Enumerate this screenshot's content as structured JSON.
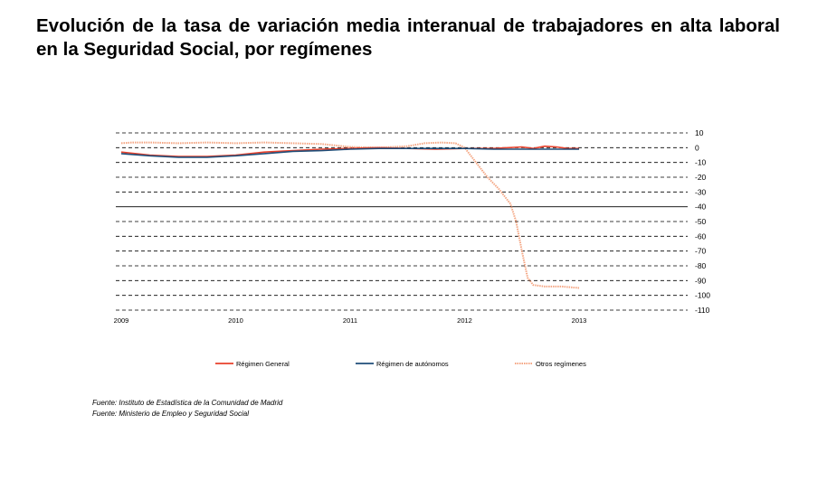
{
  "page": {
    "title": "Evolución de la tasa de variación media interanual de trabajadores en alta laboral en la Seguridad Social, por  regímenes",
    "sources": [
      "Fuente: Instituto de Estadística de la Comunidad de Madrid",
      "Fuente: Ministerio de Empleo y Seguridad Social"
    ]
  },
  "chart_data": {
    "type": "line",
    "title": "",
    "xlabel": "",
    "ylabel": "",
    "x_ticks": [
      "2009",
      "2010",
      "2011",
      "2012",
      "2013"
    ],
    "xlim": [
      2009,
      2014
    ],
    "y_ticks": [
      10,
      0,
      -10,
      -20,
      -30,
      -40,
      -50,
      -60,
      -70,
      -80,
      -90,
      -100,
      -110
    ],
    "ylim": [
      -110,
      10
    ],
    "y_axis_side": "right",
    "grid": "horizontal dashed",
    "legend_position": "bottom",
    "series": [
      {
        "name": "Régimen General",
        "color": "#e8412c",
        "style": "solid",
        "x": [
          2009.0,
          2009.25,
          2009.5,
          2009.75,
          2010.0,
          2010.25,
          2010.5,
          2010.75,
          2011.0,
          2011.25,
          2011.5,
          2011.75,
          2012.0,
          2012.25,
          2012.5,
          2012.6,
          2012.7,
          2012.8,
          2012.9,
          2013.0
        ],
        "y": [
          -3,
          -5,
          -6,
          -6,
          -5,
          -3,
          -2,
          -1,
          -0.5,
          0,
          -0.5,
          -1,
          -0.5,
          -0.5,
          0.5,
          -0.5,
          1,
          0.5,
          -0.5,
          -0.5
        ]
      },
      {
        "name": "Régimen de autónomos",
        "color": "#1f4e79",
        "style": "solid",
        "x": [
          2009.0,
          2009.25,
          2009.5,
          2009.75,
          2010.0,
          2010.25,
          2010.5,
          2010.75,
          2011.0,
          2011.25,
          2011.5,
          2011.75,
          2012.0,
          2012.25,
          2012.5,
          2012.75,
          2013.0
        ],
        "y": [
          -4,
          -5.5,
          -6.5,
          -6.5,
          -5.5,
          -4,
          -2.5,
          -2,
          -1,
          -0.5,
          -0.5,
          -0.5,
          -0.5,
          -1,
          -1,
          -1,
          -1
        ]
      },
      {
        "name": "Otros regímenes",
        "color": "#f4a582",
        "style": "dotted",
        "x": [
          2009.0,
          2009.1,
          2009.25,
          2009.5,
          2009.75,
          2010.0,
          2010.25,
          2010.5,
          2010.75,
          2011.0,
          2011.25,
          2011.5,
          2011.65,
          2011.8,
          2011.92,
          2012.0,
          2012.1,
          2012.2,
          2012.3,
          2012.4,
          2012.45,
          2012.5,
          2012.55,
          2012.6,
          2012.7,
          2012.85,
          2013.0
        ],
        "y": [
          3,
          3.5,
          3.5,
          3,
          3.5,
          3,
          3.5,
          3,
          2.5,
          0.5,
          0,
          1,
          3,
          3.5,
          3,
          0,
          -10,
          -20,
          -28,
          -38,
          -50,
          -70,
          -88,
          -93,
          -94,
          -94,
          -95
        ]
      }
    ]
  }
}
